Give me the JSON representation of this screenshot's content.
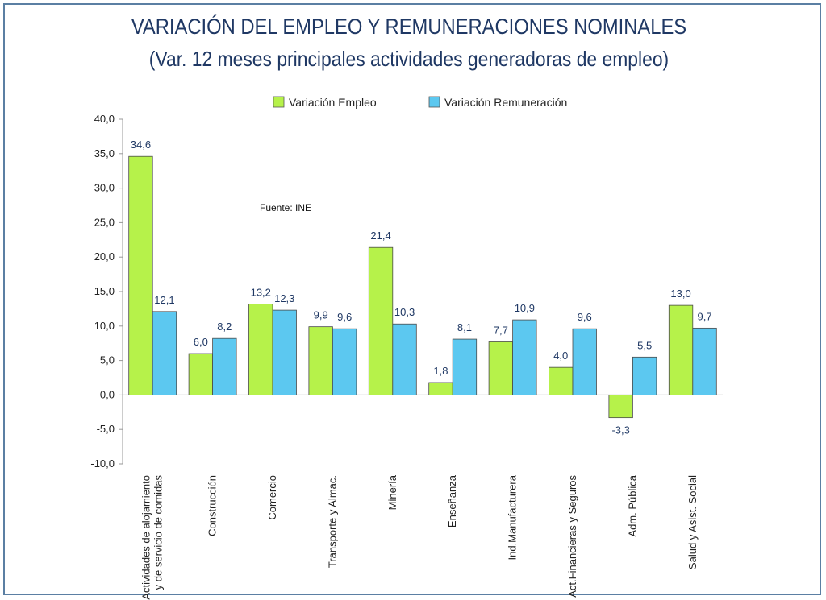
{
  "chart_data": {
    "type": "bar",
    "title": "VARIACIÓN DEL EMPLEO Y REMUNERACIONES NOMINALES",
    "subtitle": "(Var. 12 meses principales actividades generadoras de empleo)",
    "note": "Fuente: INE",
    "categories": [
      [
        "Actividades de alojamiento",
        "y de servicio de comidas"
      ],
      [
        "Construcción"
      ],
      [
        "Comercio"
      ],
      [
        "Transporte y Almac."
      ],
      [
        "Minería"
      ],
      [
        "Enseñanza"
      ],
      [
        "Ind.Manufacturera"
      ],
      [
        "Act.Financieras y Seguros"
      ],
      [
        "Adm. Pública"
      ],
      [
        "Salud y Asist. Social"
      ]
    ],
    "series": [
      {
        "name": "Variación Empleo",
        "color": "#b6f24a",
        "values": [
          34.6,
          6.0,
          13.2,
          9.9,
          21.4,
          1.8,
          7.7,
          4.0,
          -3.3,
          13.0
        ],
        "labels": [
          "34,6",
          "6,0",
          "13,2",
          "9,9",
          "21,4",
          "1,8",
          "7,7",
          "4,0",
          "-3,3",
          "13,0"
        ]
      },
      {
        "name": "Variación Remuneración",
        "color": "#5cc8f0",
        "values": [
          12.1,
          8.2,
          12.3,
          9.6,
          10.3,
          8.1,
          10.9,
          9.6,
          5.5,
          9.7
        ],
        "labels": [
          "12,1",
          "8,2",
          "12,3",
          "9,6",
          "10,3",
          "8,1",
          "10,9",
          "9,6",
          "5,5",
          "9,7"
        ]
      }
    ],
    "yticks": [
      "-10,0",
      "-5,0",
      "0,0",
      "5,0",
      "10,0",
      "15,0",
      "20,0",
      "25,0",
      "30,0",
      "35,0",
      "40,0"
    ],
    "ylim": [
      -10,
      40
    ],
    "grid": false,
    "legend_position": "top-center"
  }
}
